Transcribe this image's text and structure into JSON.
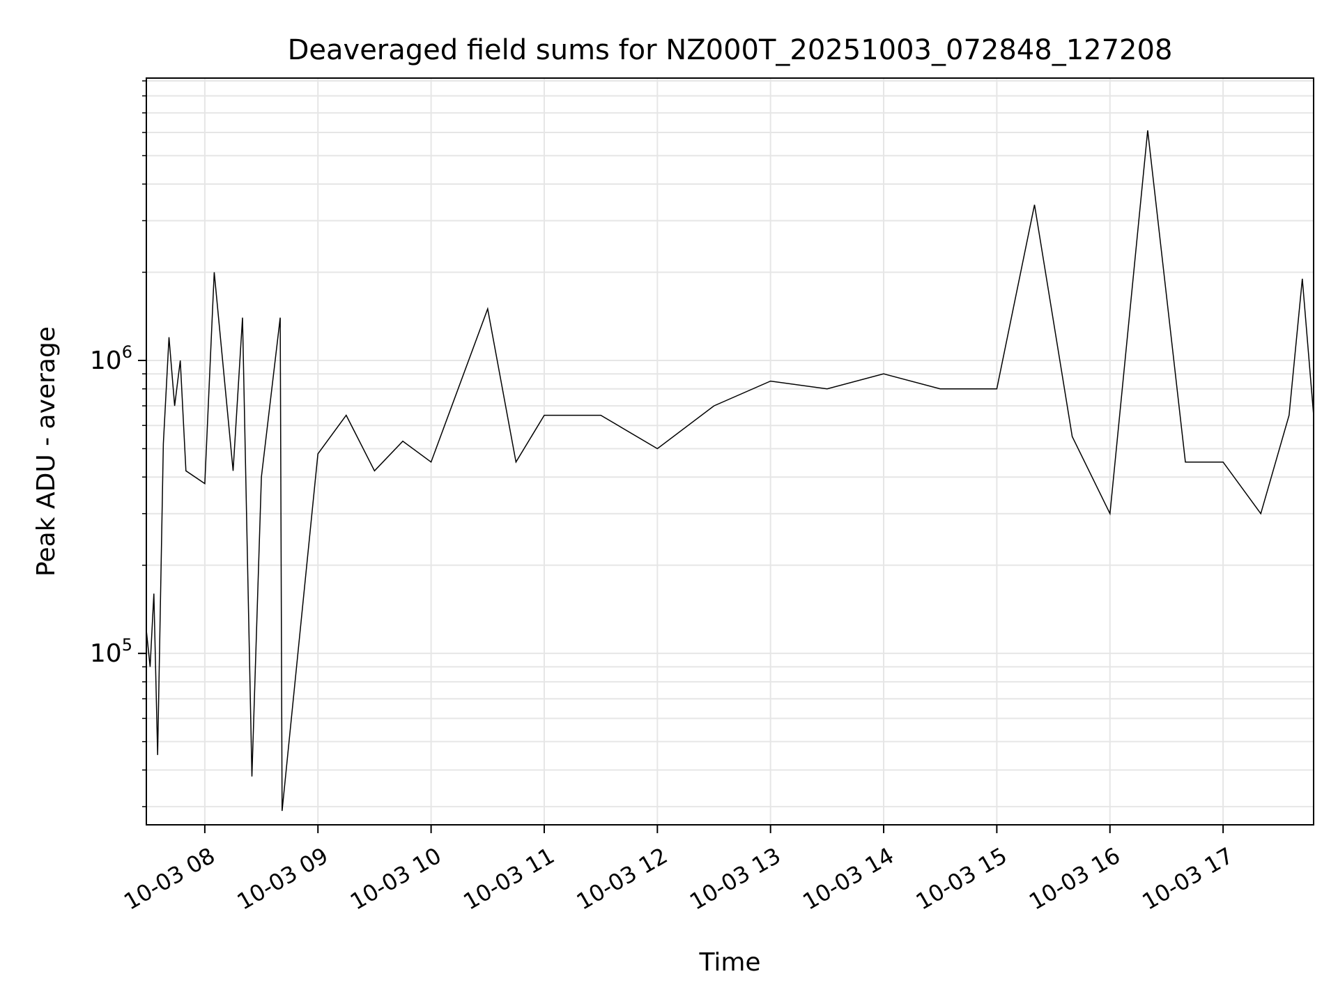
{
  "chart_data": {
    "type": "line",
    "title": "Deaveraged field sums for NZ000T_20251003_072848_127208",
    "xlabel": "Time",
    "ylabel": "Peak ADU - average",
    "yscale": "log",
    "grid": true,
    "x_tick_labels": [
      "10-03 08",
      "10-03 09",
      "10-03 10",
      "10-03 11",
      "10-03 12",
      "10-03 13",
      "10-03 14",
      "10-03 15",
      "10-03 16",
      "10-03 17"
    ],
    "xlim": [
      "2025-10-03 07:29",
      "2025-10-03 17:48"
    ],
    "ylim": [
      26000,
      9200000
    ],
    "y_tick_labels": [
      {
        "base": "10",
        "exp": "5",
        "value": 100000
      },
      {
        "base": "10",
        "exp": "6",
        "value": 1000000
      }
    ],
    "series": [
      {
        "color": "#000000",
        "points": [
          [
            "2025-10-03 07:29",
            120000
          ],
          [
            "2025-10-03 07:31",
            90000
          ],
          [
            "2025-10-03 07:33",
            160000
          ],
          [
            "2025-10-03 07:35",
            45000
          ],
          [
            "2025-10-03 07:38",
            520000
          ],
          [
            "2025-10-03 07:41",
            1200000
          ],
          [
            "2025-10-03 07:44",
            700000
          ],
          [
            "2025-10-03 07:47",
            1000000
          ],
          [
            "2025-10-03 07:50",
            420000
          ],
          [
            "2025-10-03 08:00",
            380000
          ],
          [
            "2025-10-03 08:05",
            2000000
          ],
          [
            "2025-10-03 08:15",
            420000
          ],
          [
            "2025-10-03 08:20",
            1400000
          ],
          [
            "2025-10-03 08:25",
            38000
          ],
          [
            "2025-10-03 08:30",
            400000
          ],
          [
            "2025-10-03 08:40",
            1400000
          ],
          [
            "2025-10-03 09:00",
            480000
          ],
          [
            "2025-10-03 08:41",
            29000
          ],
          [
            "2025-10-03 09:15",
            650000
          ],
          [
            "2025-10-03 09:30",
            420000
          ],
          [
            "2025-10-03 09:45",
            530000
          ],
          [
            "2025-10-03 10:00",
            450000
          ],
          [
            "2025-10-03 10:30",
            1500000
          ],
          [
            "2025-10-03 10:45",
            450000
          ],
          [
            "2025-10-03 11:00",
            650000
          ],
          [
            "2025-10-03 11:30",
            650000
          ],
          [
            "2025-10-03 12:00",
            500000
          ],
          [
            "2025-10-03 12:30",
            700000
          ],
          [
            "2025-10-03 13:00",
            850000
          ],
          [
            "2025-10-03 13:30",
            800000
          ],
          [
            "2025-10-03 14:00",
            900000
          ],
          [
            "2025-10-03 14:30",
            800000
          ],
          [
            "2025-10-03 15:00",
            800000
          ],
          [
            "2025-10-03 15:20",
            3400000
          ],
          [
            "2025-10-03 15:40",
            550000
          ],
          [
            "2025-10-03 16:00",
            300000
          ],
          [
            "2025-10-03 16:20",
            6100000
          ],
          [
            "2025-10-03 16:40",
            450000
          ],
          [
            "2025-10-03 17:00",
            450000
          ],
          [
            "2025-10-03 17:20",
            300000
          ],
          [
            "2025-10-03 17:35",
            650000
          ],
          [
            "2025-10-03 17:42",
            1900000
          ],
          [
            "2025-10-03 17:48",
            650000
          ]
        ]
      }
    ]
  }
}
